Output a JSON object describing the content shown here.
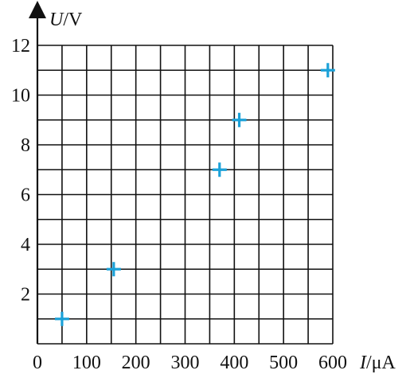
{
  "chart_data": {
    "type": "scatter",
    "title": "",
    "xlabel": "I/μA",
    "ylabel": "U/V",
    "xlabel_parts": {
      "symbol": "I",
      "unit": "/μA"
    },
    "ylabel_parts": {
      "symbol": "U",
      "unit": "/V"
    },
    "xlim": [
      0,
      600
    ],
    "ylim": [
      0,
      12
    ],
    "x_ticks": [
      "0",
      "100",
      "200",
      "300",
      "400",
      "500",
      "600"
    ],
    "y_ticks": [
      "2",
      "4",
      "6",
      "8",
      "10",
      "12"
    ],
    "grid": true,
    "grid_x_step": 50,
    "grid_y_step": 1,
    "marker": "plus",
    "marker_color": "#1ba1d8",
    "series": [
      {
        "x": [
          50,
          155,
          370,
          410,
          590
        ],
        "y": [
          1,
          3,
          7,
          9,
          11
        ]
      }
    ]
  }
}
